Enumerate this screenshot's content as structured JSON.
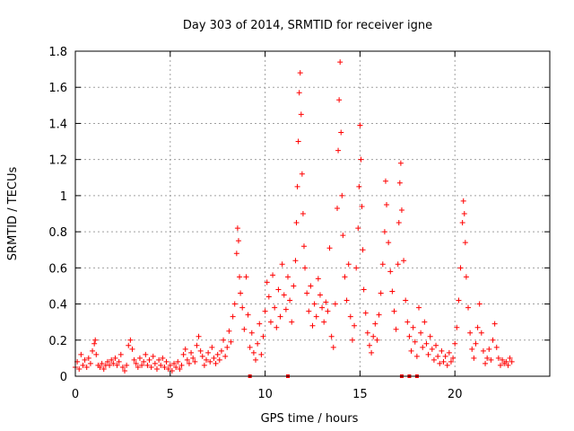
{
  "chart_data": {
    "type": "scatter",
    "title": "Day 303 of 2014, SRMTID for receiver igne",
    "xlabel": "GPS time / hours",
    "ylabel": "SRMTID / TECUs",
    "xlim": [
      0,
      25
    ],
    "ylim": [
      0,
      1.8
    ],
    "xticks": [
      0,
      5,
      10,
      15,
      20
    ],
    "xtick_labels": [
      "0",
      "5",
      "10",
      "15",
      "20"
    ],
    "yticks": [
      0,
      0.2,
      0.4,
      0.6,
      0.8,
      1,
      1.2,
      1.4,
      1.6,
      1.8
    ],
    "ytick_labels": [
      "0",
      "0.2",
      "0.4",
      "0.6",
      "0.8",
      "1",
      "1.2",
      "1.4",
      "1.6",
      "1.8"
    ],
    "grid": true,
    "marker": "+",
    "color": "#ff0000",
    "gap_markers_x": [
      9.2,
      11.2,
      17.2,
      17.6,
      18.0
    ],
    "series": [
      {
        "name": "SRMTID",
        "points": [
          [
            0.0,
            0.05
          ],
          [
            0.1,
            0.08
          ],
          [
            0.2,
            0.04
          ],
          [
            0.3,
            0.12
          ],
          [
            0.4,
            0.06
          ],
          [
            0.5,
            0.09
          ],
          [
            0.6,
            0.05
          ],
          [
            0.7,
            0.1
          ],
          [
            0.8,
            0.07
          ],
          [
            0.9,
            0.14
          ],
          [
            1.0,
            0.18
          ],
          [
            1.05,
            0.2
          ],
          [
            1.1,
            0.12
          ],
          [
            1.2,
            0.06
          ],
          [
            1.3,
            0.05
          ],
          [
            1.4,
            0.07
          ],
          [
            1.5,
            0.04
          ],
          [
            1.6,
            0.06
          ],
          [
            1.7,
            0.08
          ],
          [
            1.8,
            0.06
          ],
          [
            1.9,
            0.09
          ],
          [
            2.0,
            0.07
          ],
          [
            2.1,
            0.1
          ],
          [
            2.2,
            0.06
          ],
          [
            2.3,
            0.08
          ],
          [
            2.4,
            0.12
          ],
          [
            2.5,
            0.05
          ],
          [
            2.6,
            0.03
          ],
          [
            2.7,
            0.06
          ],
          [
            2.8,
            0.17
          ],
          [
            2.9,
            0.2
          ],
          [
            3.0,
            0.15
          ],
          [
            3.1,
            0.09
          ],
          [
            3.2,
            0.07
          ],
          [
            3.3,
            0.05
          ],
          [
            3.4,
            0.1
          ],
          [
            3.5,
            0.06
          ],
          [
            3.6,
            0.08
          ],
          [
            3.7,
            0.12
          ],
          [
            3.8,
            0.06
          ],
          [
            3.9,
            0.09
          ],
          [
            4.0,
            0.05
          ],
          [
            4.1,
            0.11
          ],
          [
            4.2,
            0.07
          ],
          [
            4.3,
            0.04
          ],
          [
            4.4,
            0.09
          ],
          [
            4.5,
            0.06
          ],
          [
            4.6,
            0.1
          ],
          [
            4.7,
            0.05
          ],
          [
            4.8,
            0.08
          ],
          [
            4.9,
            0.04
          ],
          [
            5.0,
            0.06
          ],
          [
            5.1,
            0.03
          ],
          [
            5.2,
            0.07
          ],
          [
            5.3,
            0.05
          ],
          [
            5.4,
            0.08
          ],
          [
            5.5,
            0.04
          ],
          [
            5.6,
            0.06
          ],
          [
            5.7,
            0.12
          ],
          [
            5.8,
            0.15
          ],
          [
            5.9,
            0.09
          ],
          [
            6.0,
            0.07
          ],
          [
            6.1,
            0.13
          ],
          [
            6.2,
            0.1
          ],
          [
            6.3,
            0.08
          ],
          [
            6.4,
            0.17
          ],
          [
            6.5,
            0.22
          ],
          [
            6.6,
            0.14
          ],
          [
            6.7,
            0.11
          ],
          [
            6.8,
            0.06
          ],
          [
            6.9,
            0.09
          ],
          [
            7.0,
            0.13
          ],
          [
            7.1,
            0.08
          ],
          [
            7.2,
            0.16
          ],
          [
            7.3,
            0.1
          ],
          [
            7.4,
            0.07
          ],
          [
            7.5,
            0.12
          ],
          [
            7.6,
            0.09
          ],
          [
            7.7,
            0.14
          ],
          [
            7.8,
            0.2
          ],
          [
            7.9,
            0.11
          ],
          [
            8.0,
            0.16
          ],
          [
            8.1,
            0.25
          ],
          [
            8.2,
            0.19
          ],
          [
            8.3,
            0.33
          ],
          [
            8.4,
            0.4
          ],
          [
            8.5,
            0.68
          ],
          [
            8.55,
            0.82
          ],
          [
            8.6,
            0.75
          ],
          [
            8.65,
            0.55
          ],
          [
            8.7,
            0.46
          ],
          [
            8.8,
            0.38
          ],
          [
            8.9,
            0.26
          ],
          [
            9.0,
            0.55
          ],
          [
            9.1,
            0.34
          ],
          [
            9.2,
            0.16
          ],
          [
            9.3,
            0.24
          ],
          [
            9.4,
            0.13
          ],
          [
            9.5,
            0.09
          ],
          [
            9.6,
            0.18
          ],
          [
            9.7,
            0.29
          ],
          [
            9.8,
            0.12
          ],
          [
            9.9,
            0.22
          ],
          [
            10.0,
            0.36
          ],
          [
            10.1,
            0.52
          ],
          [
            10.2,
            0.44
          ],
          [
            10.3,
            0.3
          ],
          [
            10.4,
            0.56
          ],
          [
            10.5,
            0.38
          ],
          [
            10.6,
            0.27
          ],
          [
            10.7,
            0.48
          ],
          [
            10.8,
            0.33
          ],
          [
            10.9,
            0.62
          ],
          [
            11.0,
            0.45
          ],
          [
            11.1,
            0.37
          ],
          [
            11.2,
            0.55
          ],
          [
            11.3,
            0.42
          ],
          [
            11.4,
            0.3
          ],
          [
            11.5,
            0.5
          ],
          [
            11.6,
            0.64
          ],
          [
            11.65,
            0.85
          ],
          [
            11.7,
            1.05
          ],
          [
            11.75,
            1.3
          ],
          [
            11.8,
            1.57
          ],
          [
            11.85,
            1.68
          ],
          [
            11.9,
            1.45
          ],
          [
            11.95,
            1.12
          ],
          [
            12.0,
            0.9
          ],
          [
            12.05,
            0.72
          ],
          [
            12.1,
            0.6
          ],
          [
            12.2,
            0.46
          ],
          [
            12.3,
            0.36
          ],
          [
            12.4,
            0.5
          ],
          [
            12.5,
            0.28
          ],
          [
            12.6,
            0.4
          ],
          [
            12.7,
            0.33
          ],
          [
            12.8,
            0.54
          ],
          [
            12.9,
            0.45
          ],
          [
            13.0,
            0.38
          ],
          [
            13.1,
            0.3
          ],
          [
            13.2,
            0.41
          ],
          [
            13.3,
            0.36
          ],
          [
            13.4,
            0.71
          ],
          [
            13.5,
            0.22
          ],
          [
            13.6,
            0.16
          ],
          [
            13.7,
            0.4
          ],
          [
            13.8,
            0.93
          ],
          [
            13.85,
            1.25
          ],
          [
            13.9,
            1.53
          ],
          [
            13.95,
            1.74
          ],
          [
            14.0,
            1.35
          ],
          [
            14.05,
            1.0
          ],
          [
            14.1,
            0.78
          ],
          [
            14.2,
            0.55
          ],
          [
            14.3,
            0.42
          ],
          [
            14.4,
            0.62
          ],
          [
            14.5,
            0.33
          ],
          [
            14.6,
            0.2
          ],
          [
            14.7,
            0.28
          ],
          [
            14.8,
            0.6
          ],
          [
            14.9,
            0.82
          ],
          [
            14.95,
            1.05
          ],
          [
            15.0,
            1.39
          ],
          [
            15.05,
            1.2
          ],
          [
            15.1,
            0.94
          ],
          [
            15.15,
            0.7
          ],
          [
            15.2,
            0.48
          ],
          [
            15.3,
            0.35
          ],
          [
            15.4,
            0.24
          ],
          [
            15.5,
            0.17
          ],
          [
            15.6,
            0.13
          ],
          [
            15.7,
            0.22
          ],
          [
            15.8,
            0.29
          ],
          [
            15.9,
            0.2
          ],
          [
            16.0,
            0.34
          ],
          [
            16.1,
            0.46
          ],
          [
            16.2,
            0.62
          ],
          [
            16.3,
            0.8
          ],
          [
            16.35,
            1.08
          ],
          [
            16.4,
            0.95
          ],
          [
            16.5,
            0.74
          ],
          [
            16.6,
            0.58
          ],
          [
            16.7,
            0.47
          ],
          [
            16.8,
            0.36
          ],
          [
            16.9,
            0.26
          ],
          [
            17.0,
            0.62
          ],
          [
            17.05,
            0.85
          ],
          [
            17.1,
            1.07
          ],
          [
            17.15,
            1.18
          ],
          [
            17.2,
            0.92
          ],
          [
            17.3,
            0.64
          ],
          [
            17.4,
            0.42
          ],
          [
            17.5,
            0.3
          ],
          [
            17.6,
            0.22
          ],
          [
            17.7,
            0.14
          ],
          [
            17.8,
            0.27
          ],
          [
            17.9,
            0.19
          ],
          [
            18.0,
            0.11
          ],
          [
            18.1,
            0.38
          ],
          [
            18.2,
            0.24
          ],
          [
            18.3,
            0.16
          ],
          [
            18.4,
            0.3
          ],
          [
            18.5,
            0.18
          ],
          [
            18.6,
            0.12
          ],
          [
            18.7,
            0.22
          ],
          [
            18.8,
            0.15
          ],
          [
            18.9,
            0.09
          ],
          [
            19.0,
            0.17
          ],
          [
            19.1,
            0.11
          ],
          [
            19.2,
            0.07
          ],
          [
            19.3,
            0.14
          ],
          [
            19.4,
            0.08
          ],
          [
            19.5,
            0.11
          ],
          [
            19.6,
            0.06
          ],
          [
            19.7,
            0.13
          ],
          [
            19.8,
            0.08
          ],
          [
            19.9,
            0.1
          ],
          [
            20.0,
            0.18
          ],
          [
            20.1,
            0.27
          ],
          [
            20.2,
            0.42
          ],
          [
            20.3,
            0.6
          ],
          [
            20.4,
            0.85
          ],
          [
            20.45,
            0.97
          ],
          [
            20.5,
            0.9
          ],
          [
            20.55,
            0.74
          ],
          [
            20.6,
            0.55
          ],
          [
            20.7,
            0.38
          ],
          [
            20.8,
            0.24
          ],
          [
            20.9,
            0.15
          ],
          [
            21.0,
            0.1
          ],
          [
            21.1,
            0.18
          ],
          [
            21.2,
            0.27
          ],
          [
            21.3,
            0.4
          ],
          [
            21.4,
            0.24
          ],
          [
            21.5,
            0.14
          ],
          [
            21.6,
            0.07
          ],
          [
            21.7,
            0.1
          ],
          [
            21.8,
            0.15
          ],
          [
            21.9,
            0.09
          ],
          [
            22.0,
            0.2
          ],
          [
            22.1,
            0.29
          ],
          [
            22.2,
            0.16
          ],
          [
            22.3,
            0.1
          ],
          [
            22.4,
            0.06
          ],
          [
            22.5,
            0.09
          ],
          [
            22.6,
            0.07
          ],
          [
            22.7,
            0.08
          ],
          [
            22.8,
            0.06
          ],
          [
            22.9,
            0.1
          ],
          [
            23.0,
            0.08
          ]
        ]
      }
    ]
  }
}
